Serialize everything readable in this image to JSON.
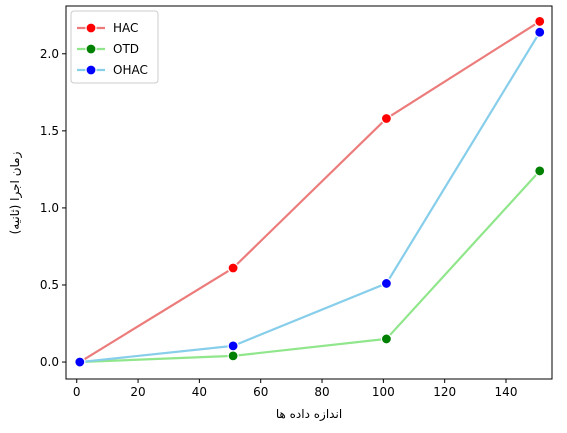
{
  "chart_data": {
    "type": "line",
    "xlabel": "اندازه داده ها",
    "ylabel": "زمان اجرا (ثانیه)",
    "xlim": [
      -3.5,
      155
    ],
    "ylim": [
      -0.11,
      2.31
    ],
    "xticks": [
      0,
      20,
      40,
      60,
      80,
      100,
      120,
      140
    ],
    "yticks": [
      0.0,
      0.5,
      1.0,
      1.5,
      2.0
    ],
    "xtick_labels": [
      "0",
      "20",
      "40",
      "60",
      "80",
      "100",
      "120",
      "140"
    ],
    "ytick_labels": [
      "0.0",
      "0.5",
      "1.0",
      "1.5",
      "2.0"
    ],
    "x": [
      1,
      51,
      101,
      151
    ],
    "grid": false,
    "legend_position": "top-left",
    "series": [
      {
        "name": "HAC",
        "values": [
          0.0,
          0.61,
          1.58,
          2.21
        ],
        "line_color": "#ec7c7b",
        "marker_color": "#ff0000"
      },
      {
        "name": "OTD",
        "values": [
          0.0,
          0.04,
          0.15,
          1.24
        ],
        "line_color": "#90e68a",
        "marker_color": "#008000"
      },
      {
        "name": "OHAC",
        "values": [
          0.0,
          0.105,
          0.51,
          2.14
        ],
        "line_color": "#87ceeb",
        "marker_color": "#0000ff"
      }
    ]
  }
}
